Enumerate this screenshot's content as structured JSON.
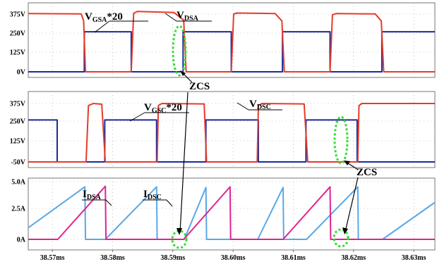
{
  "chart_data": [
    {
      "type": "line",
      "panel": "top",
      "yticks": [
        "375V",
        "250V",
        "125V",
        "0V"
      ],
      "ylim": [
        -10,
        400
      ],
      "xlim": [
        38.566,
        38.6335
      ],
      "grid": true,
      "series": [
        {
          "name": "VGSA*20",
          "color": "#1a2b9c",
          "x": [
            38.566,
            38.5753,
            38.5753,
            38.5831,
            38.5831,
            38.5917,
            38.5917,
            38.5997,
            38.5997,
            38.6082,
            38.6082,
            38.6161,
            38.6161,
            38.6247,
            38.6247,
            38.6335
          ],
          "y": [
            0,
            0,
            260,
            260,
            0,
            0,
            260,
            260,
            0,
            0,
            260,
            260,
            0,
            0,
            260,
            260
          ]
        },
        {
          "name": "VDSA",
          "color": "#e53b2c",
          "x": [
            38.566,
            38.5748,
            38.5752,
            38.5755,
            38.5831,
            38.5835,
            38.5841,
            38.5902,
            38.5918,
            38.5922,
            38.5997,
            38.6001,
            38.6006,
            38.607,
            38.6081,
            38.6085,
            38.6161,
            38.6165,
            38.6171,
            38.6236,
            38.6246,
            38.625,
            38.6335
          ],
          "y": [
            378,
            376,
            330,
            0,
            0,
            380,
            392,
            385,
            335,
            0,
            0,
            375,
            382,
            378,
            330,
            0,
            0,
            370,
            378,
            376,
            330,
            0,
            0
          ]
        }
      ],
      "annotations": [
        {
          "text": "VGSA*20",
          "main": "V",
          "sub": "GSA",
          "suffix": "*20"
        },
        {
          "text": "VDSA",
          "main": "V",
          "sub": "DSA",
          "suffix": ""
        }
      ]
    },
    {
      "type": "line",
      "panel": "middle",
      "yticks": [
        "375V",
        "250V",
        "125V",
        "-50V"
      ],
      "ylim": [
        -60,
        400
      ],
      "xlim": [
        38.566,
        38.6335
      ],
      "grid": true,
      "series": [
        {
          "name": "VGSC*20",
          "color": "#1a2b9c",
          "x": [
            38.566,
            38.5708,
            38.5708,
            38.5787,
            38.5787,
            38.5873,
            38.5873,
            38.5955,
            38.5955,
            38.6042,
            38.6042,
            38.6121,
            38.6121,
            38.6206,
            38.6206,
            38.6335
          ],
          "y": [
            255,
            255,
            -50,
            -50,
            255,
            255,
            -50,
            -50,
            255,
            255,
            -50,
            -50,
            255,
            255,
            -50,
            -50
          ]
        },
        {
          "name": "VDSC",
          "color": "#e53b2c",
          "x": [
            38.566,
            38.5756,
            38.576,
            38.5768,
            38.5782,
            38.5788,
            38.5874,
            38.5876,
            38.5882,
            38.5952,
            38.5956,
            38.604,
            38.6042,
            38.6048,
            38.6118,
            38.6124,
            38.6207,
            38.6209,
            38.6214,
            38.6335
          ],
          "y": [
            -50,
            -50,
            360,
            375,
            370,
            -50,
            -50,
            360,
            375,
            372,
            -50,
            -50,
            360,
            375,
            372,
            -50,
            -50,
            360,
            375,
            375
          ]
        }
      ],
      "annotations": [
        {
          "text": "VGSC*20",
          "main": "V",
          "sub": "GSC",
          "suffix": "*20"
        },
        {
          "text": "VDSC",
          "main": "V",
          "sub": "DSC",
          "suffix": ""
        }
      ]
    },
    {
      "type": "line",
      "panel": "bottom",
      "yticks": [
        "5.0A",
        "2.5A",
        "0A"
      ],
      "ylim": [
        -0.3,
        5.1
      ],
      "xlim": [
        38.566,
        38.6335
      ],
      "xticks": [
        "38.57ms",
        "38.58ms",
        "38.59ms",
        "38.60ms",
        "38.61ms",
        "38.62ms",
        "38.63ms"
      ],
      "xtick_values": [
        38.57,
        38.58,
        38.59,
        38.6,
        38.61,
        38.62,
        38.63
      ],
      "grid": true,
      "series": [
        {
          "name": "IDSA",
          "color": "#5aa8e6",
          "x": [
            38.566,
            38.5754,
            38.5755,
            38.5787,
            38.5788,
            38.5873,
            38.5874,
            38.5918,
            38.5919,
            38.5955,
            38.5956,
            38.604,
            38.6041,
            38.6083,
            38.6084,
            38.6121,
            38.6122,
            38.6207,
            38.6208,
            38.6247,
            38.6248,
            38.6335
          ],
          "y": [
            1.0,
            4.55,
            0.0,
            0.0,
            0.0,
            4.55,
            0.0,
            0.0,
            0.0,
            4.5,
            0.0,
            0.0,
            0.0,
            4.5,
            0.0,
            0.0,
            0.0,
            4.55,
            0.0,
            0.0,
            0.0,
            3.2
          ]
        },
        {
          "name": "IDSC",
          "color": "#e0248f",
          "x": [
            38.566,
            38.5708,
            38.5709,
            38.5788,
            38.5789,
            38.5873,
            38.5874,
            38.5917,
            38.5918,
            38.5995,
            38.5996,
            38.6042,
            38.6043,
            38.6082,
            38.6083,
            38.6161,
            38.6162,
            38.6206,
            38.6207,
            38.6247,
            38.6248,
            38.6335
          ],
          "y": [
            0.0,
            0.0,
            0.0,
            4.6,
            0.0,
            0.0,
            0.0,
            0.0,
            0.0,
            4.55,
            0.0,
            0.0,
            0.0,
            0.0,
            0.0,
            4.55,
            0.0,
            0.0,
            0.0,
            0.0,
            0.0,
            0.0
          ]
        }
      ],
      "annotations": [
        {
          "text": "IDSA",
          "main": "I",
          "sub": "DSA",
          "suffix": ""
        },
        {
          "text": "IDSC",
          "main": "I",
          "sub": "DSC",
          "suffix": ""
        }
      ]
    }
  ],
  "callouts": [
    {
      "text": "ZCS",
      "color": "#000000"
    },
    {
      "text": "ZCS",
      "color": "#000000"
    }
  ],
  "colors": {
    "gate_blue": "#1a2b9c",
    "drain_red": "#e53b2c",
    "current_blue": "#5aa8e6",
    "current_magenta": "#e0248f",
    "zcs_ring_green": "#33dd33",
    "grid": "#9a9a9a"
  }
}
